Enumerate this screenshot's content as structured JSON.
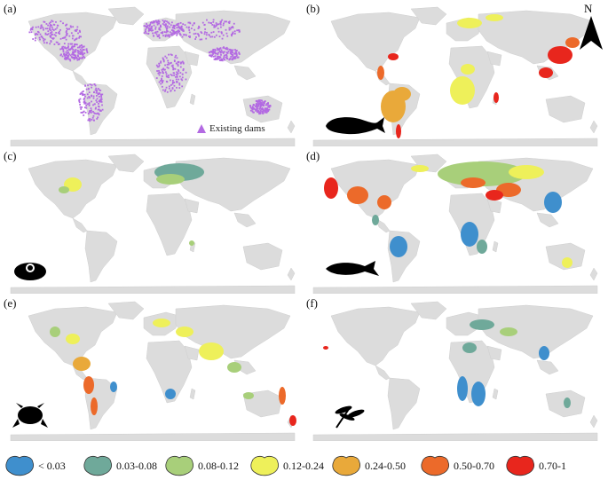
{
  "panels": [
    {
      "label": "(a)",
      "kind": "dams"
    },
    {
      "label": "(b)",
      "kind": "mammal"
    },
    {
      "label": "(c)",
      "kind": "mollusc"
    },
    {
      "label": "(d)",
      "kind": "fish"
    },
    {
      "label": "(e)",
      "kind": "amphibian"
    },
    {
      "label": "(f)",
      "kind": "dragonfly"
    }
  ],
  "dams_legend": "Existing dams",
  "north_label": "N",
  "legend": [
    {
      "label": "< 0.03",
      "color": "#3f8fcd"
    },
    {
      "label": "0.03-0.08",
      "color": "#6fa99a"
    },
    {
      "label": "0.08-0.12",
      "color": "#a8cf7a"
    },
    {
      "label": "0.12-0.24",
      "color": "#eef05a"
    },
    {
      "label": "0.24-0.50",
      "color": "#e9a93a"
    },
    {
      "label": "0.50-0.70",
      "color": "#ec6a2a"
    },
    {
      "label": "0.70-1",
      "color": "#e8261d"
    }
  ],
  "colors": {
    "land": "#dcdcdc",
    "dams": "#b36ae2"
  }
}
